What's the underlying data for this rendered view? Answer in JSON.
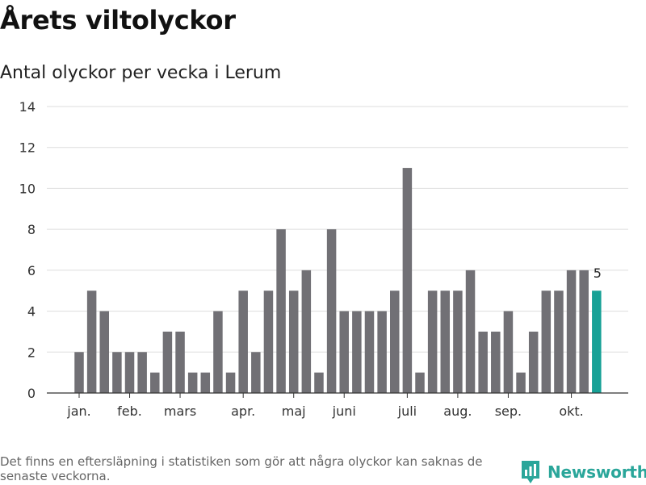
{
  "header": {
    "title": "Årets viltolyckor",
    "subtitle": "Antal olyckor per vecka i Lerum"
  },
  "footer": {
    "note": "Det finns en eftersläpning i statistiken som gör att några olyckor kan saknas de senaste veckorna.",
    "brand": "Newsworthy"
  },
  "colors": {
    "bar": "#717075",
    "highlight": "#17a196",
    "grid": "#dddddd",
    "axis": "#333333",
    "brand": "#2aa69a"
  },
  "chart_data": {
    "type": "bar",
    "title": "Årets viltolyckor",
    "subtitle": "Antal olyckor per vecka i Lerum",
    "xlabel": "",
    "ylabel": "",
    "ylim": [
      0,
      14
    ],
    "yticks": [
      0,
      2,
      4,
      6,
      8,
      10,
      12,
      14
    ],
    "grid": true,
    "month_labels": [
      {
        "label": "jan.",
        "at_week": 1
      },
      {
        "label": "feb.",
        "at_week": 5
      },
      {
        "label": "mars",
        "at_week": 9
      },
      {
        "label": "apr.",
        "at_week": 14
      },
      {
        "label": "maj",
        "at_week": 18
      },
      {
        "label": "juni",
        "at_week": 22
      },
      {
        "label": "juli",
        "at_week": 27
      },
      {
        "label": "aug.",
        "at_week": 31
      },
      {
        "label": "sep.",
        "at_week": 35
      },
      {
        "label": "okt.",
        "at_week": 40
      }
    ],
    "weeks": [
      1,
      2,
      3,
      4,
      5,
      6,
      7,
      8,
      9,
      10,
      11,
      12,
      13,
      14,
      15,
      16,
      17,
      18,
      19,
      20,
      21,
      22,
      23,
      24,
      25,
      26,
      27,
      28,
      29,
      30,
      31,
      32,
      33,
      34,
      35,
      36,
      37,
      38,
      39,
      40,
      41,
      42
    ],
    "values": [
      2,
      5,
      4,
      2,
      2,
      2,
      1,
      3,
      3,
      1,
      1,
      4,
      1,
      5,
      2,
      5,
      8,
      5,
      6,
      1,
      8,
      4,
      4,
      4,
      4,
      5,
      11,
      1,
      5,
      5,
      5,
      6,
      3,
      3,
      4,
      1,
      3,
      5,
      5,
      6,
      6,
      5
    ],
    "highlight_last": true,
    "last_value_label": "5"
  }
}
